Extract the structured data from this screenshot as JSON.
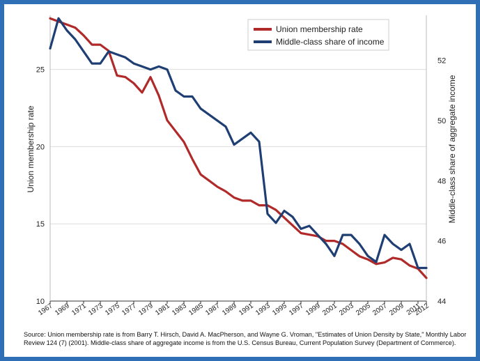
{
  "chart_data": {
    "type": "line",
    "title": "",
    "x": [
      1967,
      1968,
      1969,
      1970,
      1971,
      1972,
      1973,
      1974,
      1975,
      1976,
      1977,
      1978,
      1979,
      1980,
      1981,
      1982,
      1983,
      1984,
      1985,
      1986,
      1987,
      1988,
      1989,
      1990,
      1991,
      1992,
      1993,
      1994,
      1995,
      1996,
      1997,
      1998,
      1999,
      2000,
      2001,
      2002,
      2003,
      2004,
      2005,
      2006,
      2007,
      2008,
      2009,
      2010,
      2011,
      2012
    ],
    "x_tick_labels": [
      "1967",
      "1969",
      "1971",
      "1973",
      "1975",
      "1977",
      "1979",
      "1981",
      "1983",
      "1985",
      "1987",
      "1989",
      "1991",
      "1993",
      "1995",
      "1997",
      "1999",
      "2001",
      "2003",
      "2005",
      "2007",
      "2009",
      "2011",
      "2012"
    ],
    "x_tick_values": [
      1967,
      1969,
      1971,
      1973,
      1975,
      1977,
      1979,
      1981,
      1983,
      1985,
      1987,
      1989,
      1991,
      1993,
      1995,
      1997,
      1999,
      2001,
      2003,
      2005,
      2007,
      2009,
      2011,
      2012
    ],
    "xlim": [
      1967,
      2012
    ],
    "left_axis": {
      "label": "Union membership rate",
      "ylim": [
        10,
        28.5
      ],
      "ticks": [
        10,
        15,
        20,
        25
      ]
    },
    "right_axis": {
      "label": "Middle-class share of aggregate income",
      "ylim": [
        44,
        53.5
      ],
      "ticks": [
        44,
        46,
        48,
        50,
        52
      ]
    },
    "series": [
      {
        "name": "Union membership rate",
        "axis": "left",
        "color": "#b02a2a",
        "values": [
          28.3,
          28.1,
          27.9,
          27.7,
          27.2,
          26.6,
          26.6,
          26.2,
          24.6,
          24.5,
          24.1,
          23.5,
          24.5,
          23.3,
          21.7,
          21.0,
          20.3,
          19.2,
          18.2,
          17.8,
          17.4,
          17.1,
          16.7,
          16.5,
          16.5,
          16.2,
          16.2,
          15.9,
          15.4,
          14.9,
          14.4,
          14.3,
          14.2,
          13.9,
          13.9,
          13.7,
          13.3,
          12.9,
          12.7,
          12.4,
          12.5,
          12.8,
          12.7,
          12.3,
          12.1,
          11.5
        ]
      },
      {
        "name": "Middle-class share of income",
        "axis": "right",
        "color": "#1f3f74",
        "values": [
          52.4,
          53.4,
          53.0,
          52.7,
          52.3,
          51.9,
          51.9,
          52.3,
          52.2,
          52.1,
          51.9,
          51.8,
          51.7,
          51.8,
          51.7,
          51.0,
          50.8,
          50.8,
          50.4,
          50.2,
          50.0,
          49.8,
          49.2,
          49.4,
          49.6,
          49.3,
          46.9,
          46.6,
          47.0,
          46.8,
          46.4,
          46.5,
          46.2,
          45.9,
          45.5,
          46.2,
          46.2,
          45.9,
          45.5,
          45.3,
          46.2,
          45.9,
          45.7,
          45.9,
          45.1,
          45.1
        ]
      }
    ],
    "legend": {
      "position": "top-right",
      "entries": [
        "Union membership rate",
        "Middle-class share of income"
      ]
    },
    "grid": "horizontal",
    "colors": {
      "frame": "#2f6fb5",
      "grid": "#dddddd",
      "axis": "#333333"
    }
  },
  "source_note": "Source: Union membership rate is from Barry T. Hirsch, David A. MacPherson, and Wayne G. Vroman, \"Estimates of Union Density by State,\" Monthly Labor Review 124 (7) (2001). Middle-class share of aggregate income is from the U.S. Census Bureau, Current Population Survey (Department of Commerce)."
}
